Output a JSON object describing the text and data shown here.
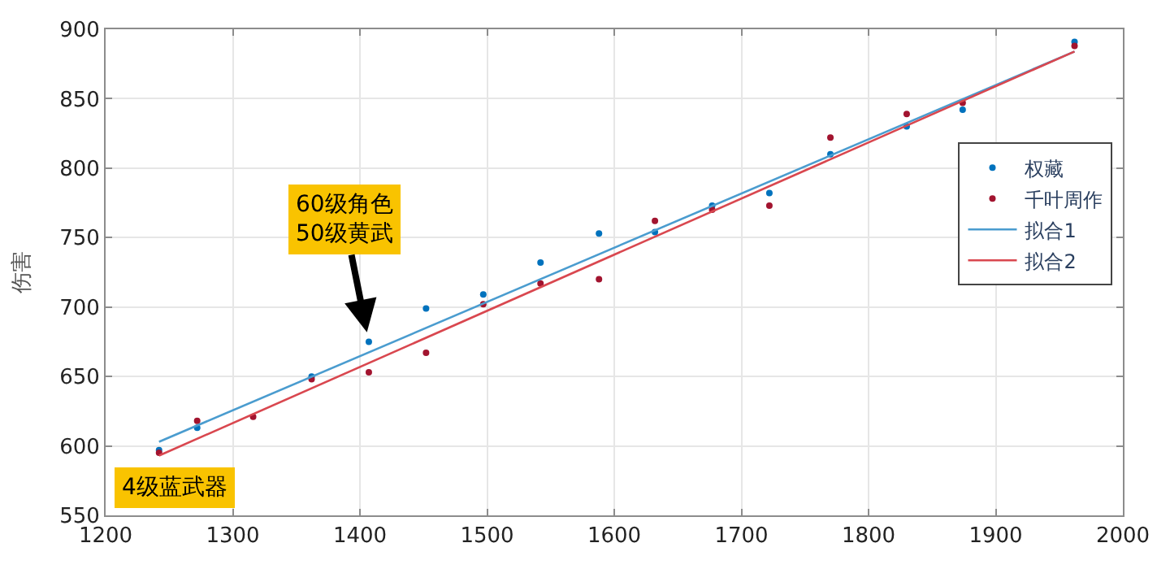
{
  "chart_data": {
    "type": "scatter",
    "ylabel": "伤害",
    "xlim": [
      1200,
      2000
    ],
    "xticks": [
      1200,
      1300,
      1400,
      1500,
      1600,
      1700,
      1800,
      1900,
      2000
    ],
    "ylim": [
      550,
      900
    ],
    "yticks": [
      550,
      600,
      650,
      700,
      750,
      800,
      850,
      900
    ],
    "grid": true,
    "legend": "right",
    "series": [
      {
        "name": "权藏",
        "color": "#0072bd",
        "marker": "circle",
        "x": [
          1242,
          1272,
          1316,
          1362,
          1407,
          1452,
          1497,
          1542,
          1588,
          1632,
          1677,
          1722,
          1770,
          1830,
          1874,
          1962
        ],
        "values": [
          597,
          613,
          null,
          650,
          675,
          699,
          709,
          732,
          753,
          754,
          773,
          782,
          810,
          830,
          842,
          891
        ]
      },
      {
        "name": "千叶周作",
        "color": "#a2142f",
        "marker": "circle",
        "x": [
          1242,
          1272,
          1316,
          1362,
          1407,
          1452,
          1497,
          1542,
          1588,
          1632,
          1677,
          1722,
          1770,
          1830,
          1874,
          1962
        ],
        "values": [
          595,
          618,
          621,
          648,
          653,
          667,
          702,
          717,
          720,
          762,
          770,
          773,
          822,
          839,
          847,
          888
        ]
      },
      {
        "name": "拟合1",
        "type": "line",
        "color": "#4a9ccf",
        "x": [
          1242,
          1962
        ],
        "values": [
          603,
          884
        ]
      },
      {
        "name": "拟合2",
        "type": "line",
        "color": "#d9474f",
        "x": [
          1242,
          1962
        ],
        "values": [
          593,
          884
        ]
      }
    ],
    "annotations": [
      {
        "text": "60级角色\n50级黄武",
        "x": 1407,
        "y": 675
      },
      {
        "text": "4级蓝武器",
        "x": 1242,
        "y": 597
      }
    ]
  }
}
